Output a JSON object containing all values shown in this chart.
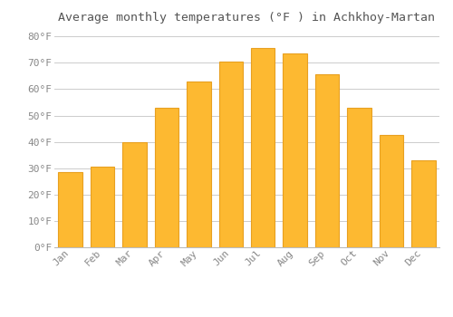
{
  "title": "Average monthly temperatures (°F ) in Achkhoy-Martan",
  "months": [
    "Jan",
    "Feb",
    "Mar",
    "Apr",
    "May",
    "Jun",
    "Jul",
    "Aug",
    "Sep",
    "Oct",
    "Nov",
    "Dec"
  ],
  "values": [
    28.5,
    30.5,
    40.0,
    53.0,
    63.0,
    70.5,
    75.5,
    73.5,
    65.5,
    53.0,
    42.5,
    33.0
  ],
  "bar_color_main": "#FDB931",
  "bar_color_edge": "#E8A020",
  "background_color": "#FFFFFF",
  "grid_color": "#CCCCCC",
  "text_color": "#888888",
  "title_color": "#555555",
  "ylim": [
    0,
    83
  ],
  "yticks": [
    0,
    10,
    20,
    30,
    40,
    50,
    60,
    70,
    80
  ],
  "title_fontsize": 9.5,
  "tick_fontsize": 8
}
